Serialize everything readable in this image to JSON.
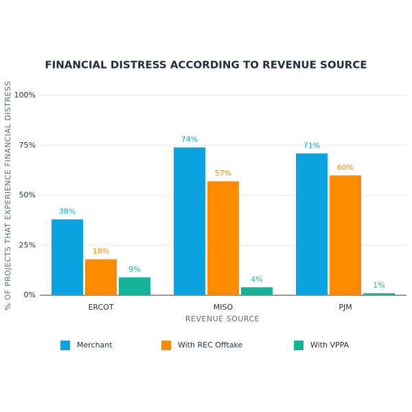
{
  "chart_data": {
    "type": "bar",
    "title": "FINANCIAL DISTRESS ACCORDING TO REVENUE SOURCE",
    "x_label": "REVENUE SOURCE",
    "y_label": "% OF PROJECTS THAT EXPERIENCE FINANCIAL DISTRESS",
    "categories": [
      "ERCOT",
      "MISO",
      "PJM"
    ],
    "series": [
      {
        "name": "Merchant",
        "color": "#0aa3e0",
        "values": [
          38,
          74,
          71
        ],
        "value_labels": [
          "38%",
          "74%",
          "71%"
        ]
      },
      {
        "name": "With REC Offtake",
        "color": "#ff8a00",
        "values": [
          18,
          57,
          60
        ],
        "value_labels": [
          "18%",
          "57%",
          "60%"
        ]
      },
      {
        "name": "With VPPA",
        "color": "#14b39a",
        "values": [
          9,
          4,
          1
        ],
        "value_labels": [
          "9%",
          "4%",
          "1%"
        ]
      }
    ],
    "ylim": [
      0,
      100
    ],
    "yticks": [
      {
        "value": 0,
        "label": "0%"
      },
      {
        "value": 25,
        "label": "25%"
      },
      {
        "value": 50,
        "label": "50%"
      },
      {
        "value": 75,
        "label": "75%"
      },
      {
        "value": 100,
        "label": "100%"
      }
    ],
    "grid": true,
    "legend": "bottom"
  }
}
